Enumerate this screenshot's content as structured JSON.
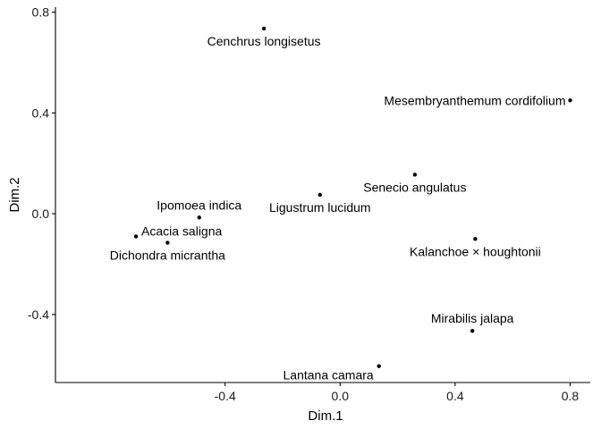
{
  "chart_data": {
    "type": "scatter",
    "title": "",
    "xlabel": "Dim.1",
    "ylabel": "Dim.2",
    "xlim": [
      -0.99,
      0.87
    ],
    "ylim": [
      -0.67,
      0.82
    ],
    "xticks": [
      {
        "value": -0.4,
        "label": "-0.4"
      },
      {
        "value": 0.0,
        "label": "0.0"
      },
      {
        "value": 0.4,
        "label": "0.4"
      },
      {
        "value": 0.8,
        "label": "0.8"
      }
    ],
    "yticks": [
      {
        "value": -0.4,
        "label": "-0.4"
      },
      {
        "value": 0.0,
        "label": "0.0"
      },
      {
        "value": 0.4,
        "label": "0.4"
      },
      {
        "value": 0.8,
        "label": "0.8"
      }
    ],
    "grid": false,
    "points": [
      {
        "label": "Cenchrus longisetus",
        "x": -0.265,
        "y": 0.735,
        "anchor": "middle",
        "pos": "below"
      },
      {
        "label": "Mesembryanthemum cordifolium",
        "x": 0.8,
        "y": 0.45,
        "anchor": "end",
        "pos": "left"
      },
      {
        "label": "Senecio angulatus",
        "x": 0.26,
        "y": 0.155,
        "anchor": "middle",
        "pos": "below"
      },
      {
        "label": "Ligustrum lucidum",
        "x": -0.07,
        "y": 0.075,
        "anchor": "middle",
        "pos": "below"
      },
      {
        "label": "Ipomoea indica",
        "x": -0.49,
        "y": -0.015,
        "anchor": "middle",
        "pos": "above"
      },
      {
        "label": "Acacia saligna",
        "x": -0.71,
        "y": -0.09,
        "anchor": "start",
        "pos": "above-right"
      },
      {
        "label": "Dichondra micrantha",
        "x": -0.6,
        "y": -0.115,
        "anchor": "middle",
        "pos": "below"
      },
      {
        "label": "Kalanchoe × houghtonii",
        "x": 0.47,
        "y": -0.1,
        "anchor": "middle",
        "pos": "below"
      },
      {
        "label": "Mirabilis jalapa",
        "x": 0.46,
        "y": -0.465,
        "anchor": "middle",
        "pos": "above"
      },
      {
        "label": "Lantana camara",
        "x": 0.135,
        "y": -0.605,
        "anchor": "end",
        "pos": "below-left"
      }
    ],
    "point_color": "#000000"
  }
}
